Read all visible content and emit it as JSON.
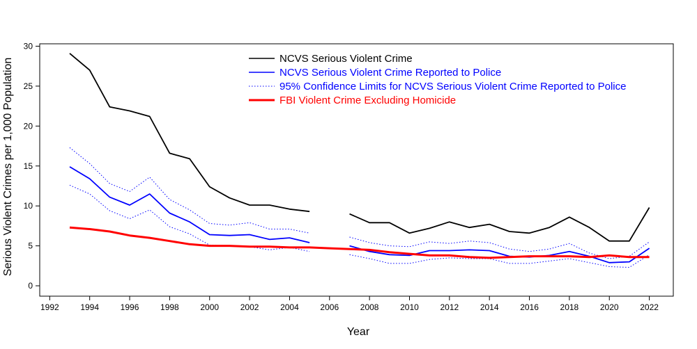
{
  "chart_data": {
    "type": "line",
    "title": "",
    "xlabel": "Year",
    "ylabel": "Serious Violent Crimes per 1,000 Population",
    "xlim": [
      1991.5,
      2023.2
    ],
    "ylim": [
      -1.3,
      30.3
    ],
    "xticks": [
      1992,
      1994,
      1996,
      1998,
      2000,
      2002,
      2004,
      2006,
      2008,
      2010,
      2012,
      2014,
      2016,
      2018,
      2020,
      2022
    ],
    "yticks": [
      0,
      5,
      10,
      15,
      20,
      25,
      30
    ],
    "legend_position": "top",
    "series": [
      {
        "name": "NCVS Serious Violent Crime",
        "color": "#000000",
        "style": "solid",
        "width": "normal",
        "x": [
          1993,
          1994,
          1995,
          1996,
          1997,
          1998,
          1999,
          2000,
          2001,
          2002,
          2003,
          2004,
          2005,
          2006,
          2007,
          2008,
          2009,
          2010,
          2011,
          2012,
          2013,
          2014,
          2015,
          2016,
          2017,
          2018,
          2019,
          2020,
          2021,
          2022
        ],
        "values": [
          29.1,
          27.0,
          22.4,
          21.9,
          21.2,
          16.6,
          15.9,
          12.4,
          11.0,
          10.1,
          10.1,
          9.6,
          9.3,
          null,
          9.0,
          7.9,
          7.9,
          6.6,
          7.2,
          8.0,
          7.3,
          7.7,
          6.8,
          6.6,
          7.3,
          8.6,
          7.3,
          5.6,
          5.6,
          9.8
        ]
      },
      {
        "name": "NCVS Serious Violent Crime Reported to Police",
        "color": "#0000ff",
        "style": "solid",
        "width": "normal",
        "x": [
          1993,
          1994,
          1995,
          1996,
          1997,
          1998,
          1999,
          2000,
          2001,
          2002,
          2003,
          2004,
          2005,
          2006,
          2007,
          2008,
          2009,
          2010,
          2011,
          2012,
          2013,
          2014,
          2015,
          2016,
          2017,
          2018,
          2019,
          2020,
          2021,
          2022
        ],
        "values": [
          14.9,
          13.4,
          11.1,
          10.1,
          11.5,
          9.1,
          8.0,
          6.4,
          6.3,
          6.4,
          5.8,
          6.0,
          5.4,
          null,
          5.0,
          4.3,
          3.9,
          3.8,
          4.4,
          4.4,
          4.5,
          4.4,
          3.7,
          3.6,
          3.8,
          4.3,
          3.7,
          2.9,
          3.0,
          4.7
        ]
      },
      {
        "name": "95% Confidence Limits for NCVS Serious Violent Crime Reported to Police",
        "color": "#0000ff",
        "style": "dotted",
        "width": "thin",
        "x": [
          1993,
          1994,
          1995,
          1996,
          1997,
          1998,
          1999,
          2000,
          2001,
          2002,
          2003,
          2004,
          2005,
          2006,
          2007,
          2008,
          2009,
          2010,
          2011,
          2012,
          2013,
          2014,
          2015,
          2016,
          2017,
          2018,
          2019,
          2020,
          2021,
          2022
        ],
        "values": [
          17.3,
          15.3,
          12.8,
          11.8,
          13.6,
          10.8,
          9.5,
          7.8,
          7.6,
          7.9,
          7.1,
          7.1,
          6.6,
          null,
          6.1,
          5.4,
          5.0,
          4.9,
          5.5,
          5.3,
          5.6,
          5.4,
          4.6,
          4.3,
          4.6,
          5.3,
          4.1,
          3.4,
          3.7,
          5.5
        ],
        "lower": [
          12.6,
          11.5,
          9.4,
          8.4,
          9.5,
          7.4,
          6.5,
          5.1,
          5.0,
          4.9,
          4.5,
          4.8,
          4.3,
          null,
          3.9,
          3.4,
          2.8,
          2.8,
          3.3,
          3.5,
          3.4,
          3.4,
          2.8,
          2.8,
          3.1,
          3.4,
          2.9,
          2.4,
          2.3,
          3.9
        ]
      },
      {
        "name": "FBI Violent Crime Excluding Homicide",
        "color": "#ff0000",
        "style": "solid",
        "width": "thick",
        "x": [
          1993,
          1994,
          1995,
          1996,
          1997,
          1998,
          1999,
          2000,
          2001,
          2002,
          2003,
          2004,
          2005,
          2006,
          2007,
          2008,
          2009,
          2010,
          2011,
          2012,
          2013,
          2014,
          2015,
          2016,
          2017,
          2018,
          2019,
          2020,
          2021,
          2022
        ],
        "values": [
          7.3,
          7.1,
          6.8,
          6.3,
          6.0,
          5.6,
          5.2,
          5.0,
          5.0,
          4.9,
          4.9,
          4.8,
          4.8,
          4.7,
          4.6,
          4.5,
          4.2,
          4.0,
          3.8,
          3.8,
          3.6,
          3.5,
          3.6,
          3.7,
          3.7,
          3.7,
          3.6,
          3.8,
          3.6,
          3.6
        ]
      }
    ]
  }
}
